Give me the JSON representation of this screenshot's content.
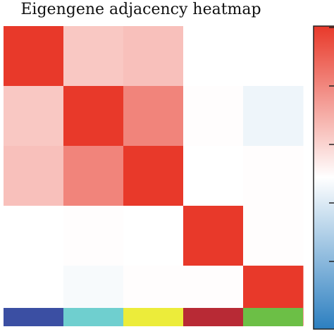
{
  "chart_data": {
    "type": "heatmap",
    "title": "Eigengene adjacency heatmap",
    "modules": [
      {
        "color": "#3b4fa3"
      },
      {
        "color": "#6fcfcf"
      },
      {
        "color": "#ecec3a"
      },
      {
        "color": "#b82a35"
      },
      {
        "color": "#6cbf46"
      }
    ],
    "matrix": [
      [
        1.0,
        0.28,
        0.32,
        0.0,
        0.0
      ],
      [
        0.28,
        1.0,
        0.62,
        0.01,
        -0.08
      ],
      [
        0.32,
        0.62,
        1.0,
        0.0,
        0.01
      ],
      [
        0.0,
        0.01,
        0.0,
        1.0,
        0.01
      ],
      [
        0.0,
        -0.04,
        0.01,
        0.01,
        1.0
      ]
    ],
    "colorscale": {
      "min": -1,
      "mid": 0,
      "max": 1,
      "low_color": "#2c7fc0",
      "mid_color": "#ffffff",
      "high_color": "#e8392a"
    },
    "colorbar_ticks": 5
  }
}
